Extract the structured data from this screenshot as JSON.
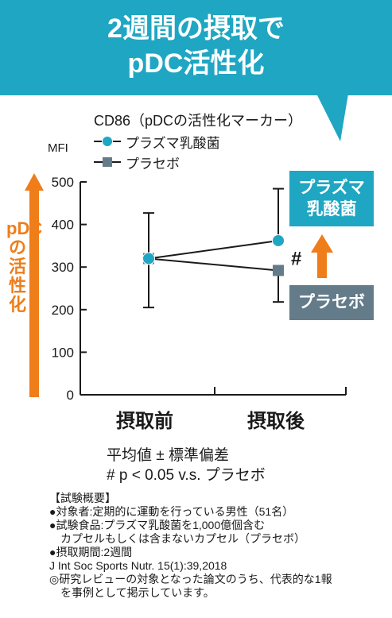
{
  "banner": {
    "line1": "2週間の摂取で",
    "line2": "pDC活性化",
    "color": "#1fa6c2"
  },
  "chart_data": {
    "type": "line",
    "title": "CD86（pDCの活性化マーカー）",
    "ylabel": "MFI",
    "y_axis_note": "pDCの活性化",
    "categories": [
      "摂取前",
      "摂取後"
    ],
    "ylim": [
      0,
      500
    ],
    "yticks": [
      0,
      100,
      200,
      300,
      400,
      500
    ],
    "series": [
      {
        "name": "プラズマ乳酸菌",
        "color": "#1fa6c2",
        "marker": "circle",
        "values": [
          320,
          362
        ],
        "error": [
          {
            "low": 205,
            "high": 427
          },
          {
            "low": 362,
            "high": 484
          }
        ]
      },
      {
        "name": "プラセボ",
        "color": "#647c8a",
        "marker": "square",
        "values": [
          320,
          292
        ],
        "error": [
          {
            "low": 205,
            "high": 427
          },
          {
            "low": 218,
            "high": 292
          }
        ]
      }
    ],
    "significance_mark": "#",
    "callouts": {
      "lactic": [
        "プラズマ",
        "乳酸菌"
      ],
      "placebo": "プラセボ"
    }
  },
  "notes": {
    "mean_sd": "平均値 ± 標準偏差",
    "pvalue": "# p < 0.05 v.s. プラセボ"
  },
  "footer": {
    "heading": "【試験概要】",
    "lines": [
      "●対象者:定期的に運動を行っている男性（51名）",
      "●試験食品:プラズマ乳酸菌を1,000億個含む",
      "　カプセルもしくは含まないカプセル（プラセボ）",
      "●摂取期間:2週間",
      "J Int Soc Sports Nutr. 15(1):39,2018",
      "◎研究レビューの対象となった論文のうち、代表的な1報",
      "　を事例として掲示しています。"
    ]
  },
  "colors": {
    "accent": "#1fa6c2",
    "orange": "#ef7d1a",
    "placebo": "#647c8a"
  }
}
